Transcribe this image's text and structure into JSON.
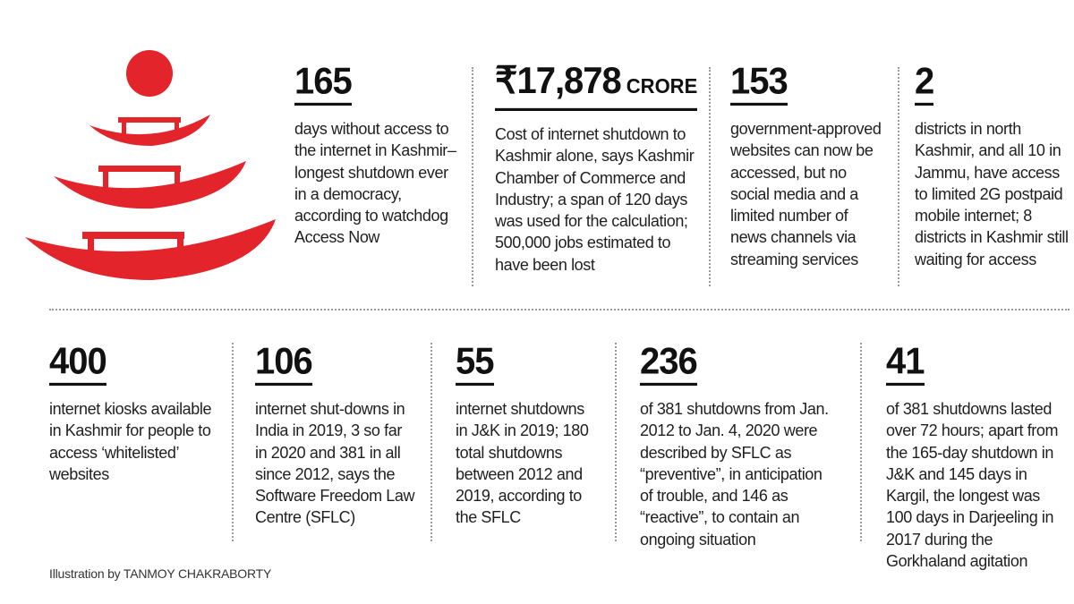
{
  "colors": {
    "accent": "#e3242b",
    "text": "#1a1a1a",
    "divider": "#9a9a9a"
  },
  "illustration": {
    "elements": [
      "sun-circle",
      "boat",
      "boat",
      "boat"
    ]
  },
  "top_stats": [
    {
      "number": "165",
      "unit": "",
      "description": "days without access to the internet in Kashmir–longest shutdown ever in a democracy, according to watchdog Access Now"
    },
    {
      "number": "₹17,878",
      "unit": "CRORE",
      "description": "Cost of internet shutdown to Kashmir alone, says Kashmir Chamber of Commerce and Industry; a span of 120 days was used for the calculation; 500,000 jobs estimated to have been lost"
    },
    {
      "number": "153",
      "unit": "",
      "description": "government-approved websites can now be accessed, but no social media and a limited number of news channels via streaming services"
    },
    {
      "number": "2",
      "unit": "",
      "description": "districts in north Kashmir, and all 10 in Jammu, have access to limited 2G postpaid mobile internet; 8 districts in Kashmir still waiting for access"
    }
  ],
  "bottom_stats": [
    {
      "number": "400",
      "description": "internet kiosks available in Kashmir for people to access ‘whitelisted’ websites"
    },
    {
      "number": "106",
      "description": "internet shut-downs in India in 2019, 3 so far in 2020 and 381 in all since 2012, says the Software Freedom Law Centre (SFLC)"
    },
    {
      "number": "55",
      "description": "internet shutdowns in J&K in 2019; 180 total shutdowns between 2012 and 2019, according to the SFLC"
    },
    {
      "number": "236",
      "description": "of 381 shutdowns from Jan. 2012 to Jan. 4, 2020 were described by SFLC as “preventive”, in anticipation of trouble, and 146 as “reactive”, to contain an ongoing situation"
    },
    {
      "number": "41",
      "description": "of 381 shutdowns lasted over 72 hours; apart from the 165-day shutdown in J&K and 145 days in Kargil, the longest was 100 days in Darjeeling in 2017 during the Gorkhaland agitation"
    }
  ],
  "credit": "Illustration by TANMOY CHAKRABORTY"
}
